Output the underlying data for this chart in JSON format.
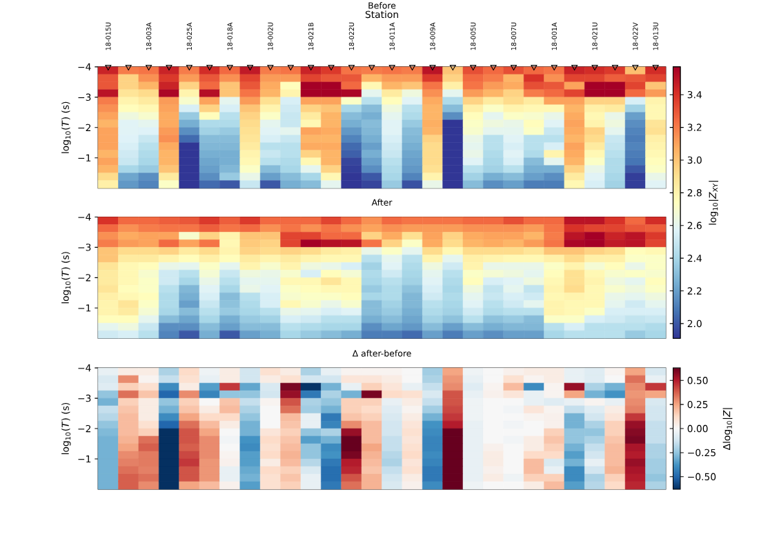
{
  "chart_data": [
    {
      "type": "heatmap",
      "title": "Before",
      "xlabel": "Station",
      "ylabel": "log$_{10}$(*T*) (s)",
      "clabel": "log$_{10}$|*Z*$_{XY}$|",
      "categories": [
        "18-015U",
        null,
        "18-003A",
        null,
        "18-025A",
        null,
        "18-018A",
        null,
        "18-002U",
        null,
        "18-021B",
        null,
        "18-022U",
        null,
        "18-011A",
        null,
        "18-009A",
        null,
        "18-005U",
        null,
        "18-007U",
        null,
        "18-001A",
        null,
        "18-021U",
        null,
        "18-022V",
        "18-013U"
      ],
      "ylim": [
        0,
        -4
      ],
      "yticks": [
        {
          "value": -4,
          "label": "−4"
        },
        {
          "value": -3,
          "label": "−3"
        },
        {
          "value": -2,
          "label": "−2"
        },
        {
          "value": -1,
          "label": "−1"
        }
      ],
      "clim": [
        1.91,
        3.57
      ],
      "cticks": [
        {
          "value": 2.8,
          "label": "2.8"
        },
        {
          "value": 3.0,
          "label": "3.0"
        },
        {
          "value": 3.2,
          "label": "3.2"
        },
        {
          "value": 3.4,
          "label": "3.4"
        }
      ],
      "cells": [
        [
          3.45,
          3.2,
          3.22,
          3.45,
          3.2,
          3.42,
          3.25,
          3.48,
          3.2,
          3.22,
          3.45,
          3.38,
          3.22,
          3.2,
          3.22,
          3.2,
          3.5,
          3.0,
          3.32,
          3.25,
          3.32,
          3.25,
          3.22,
          3.45,
          3.42,
          3.38,
          3.02,
          3.42
        ],
        [
          3.3,
          2.95,
          3.15,
          3.38,
          3.12,
          3.3,
          3.15,
          3.35,
          3.12,
          3.12,
          3.35,
          3.3,
          3.3,
          3.05,
          3.12,
          3.12,
          3.38,
          2.95,
          3.25,
          3.2,
          3.05,
          3.4,
          3.15,
          3.35,
          3.35,
          3.28,
          3.3,
          3.35
        ],
        [
          3.3,
          2.95,
          3.05,
          3.45,
          2.95,
          3.25,
          3.0,
          3.3,
          3.08,
          2.75,
          3.57,
          3.57,
          3.25,
          2.78,
          3.05,
          3.0,
          3.22,
          2.82,
          3.22,
          3.12,
          3.08,
          3.32,
          3.3,
          3.1,
          3.57,
          3.57,
          3.35,
          3.0
        ],
        [
          3.5,
          2.88,
          2.92,
          3.55,
          2.8,
          3.52,
          3.0,
          3.22,
          3.05,
          2.8,
          3.57,
          3.57,
          3.55,
          2.6,
          2.85,
          2.65,
          3.15,
          2.6,
          3.12,
          3.05,
          2.95,
          3.2,
          3.25,
          3.35,
          3.57,
          3.57,
          3.25,
          3.12
        ],
        [
          3.2,
          2.8,
          2.85,
          3.12,
          2.7,
          3.1,
          2.6,
          3.12,
          2.9,
          2.55,
          3.1,
          3.1,
          2.72,
          2.45,
          2.75,
          2.58,
          3.08,
          2.42,
          2.95,
          2.85,
          2.92,
          2.85,
          3.1,
          3.1,
          2.95,
          2.95,
          2.55,
          2.8
        ],
        [
          3.15,
          2.75,
          2.78,
          3.1,
          2.55,
          2.95,
          2.55,
          3.0,
          2.8,
          2.52,
          2.95,
          3.0,
          2.4,
          2.3,
          2.65,
          2.45,
          3.05,
          2.3,
          2.82,
          2.72,
          2.8,
          2.78,
          2.78,
          3.05,
          2.82,
          2.85,
          2.38,
          2.78
        ],
        [
          3.1,
          2.65,
          2.7,
          3.08,
          2.35,
          2.75,
          2.45,
          2.95,
          2.72,
          2.5,
          2.85,
          3.05,
          2.3,
          2.25,
          2.6,
          2.42,
          3.05,
          2.15,
          2.75,
          2.6,
          2.72,
          2.7,
          2.62,
          3.08,
          2.78,
          2.62,
          2.2,
          2.78
        ],
        [
          3.05,
          2.58,
          2.6,
          3.08,
          2.25,
          2.42,
          2.42,
          2.92,
          2.6,
          2.5,
          2.78,
          3.05,
          2.25,
          2.3,
          2.58,
          2.35,
          3.07,
          1.91,
          2.72,
          2.65,
          2.62,
          2.75,
          2.58,
          3.1,
          2.8,
          2.65,
          2.15,
          2.88
        ],
        [
          3.1,
          2.58,
          2.57,
          3.12,
          2.15,
          2.38,
          2.35,
          2.9,
          2.58,
          2.6,
          3.1,
          3.08,
          2.18,
          2.28,
          2.58,
          2.3,
          3.05,
          1.91,
          2.7,
          2.6,
          2.6,
          2.72,
          2.5,
          3.08,
          2.95,
          2.6,
          2.12,
          2.9
        ],
        [
          3.1,
          2.57,
          2.5,
          3.15,
          2.05,
          2.3,
          2.3,
          2.88,
          2.55,
          2.5,
          3.05,
          3.05,
          2.12,
          2.25,
          2.55,
          2.28,
          2.95,
          1.91,
          2.62,
          2.45,
          2.58,
          2.45,
          2.45,
          3.05,
          2.92,
          2.5,
          2.1,
          2.82
        ],
        [
          3.1,
          2.55,
          2.45,
          3.08,
          1.91,
          2.28,
          2.28,
          2.85,
          2.45,
          2.45,
          3.08,
          3.08,
          2.05,
          2.2,
          2.52,
          2.25,
          2.92,
          1.91,
          2.6,
          2.45,
          2.55,
          2.45,
          2.55,
          3.1,
          2.85,
          2.48,
          2.12,
          2.8
        ],
        [
          3.05,
          2.52,
          2.42,
          3.05,
          1.91,
          2.25,
          2.25,
          2.8,
          2.5,
          2.45,
          2.95,
          3.05,
          2.02,
          2.25,
          2.5,
          2.22,
          2.92,
          1.91,
          2.62,
          2.42,
          2.58,
          2.42,
          2.8,
          3.08,
          2.78,
          2.45,
          2.1,
          2.78
        ],
        [
          3.1,
          2.5,
          2.4,
          3.05,
          1.91,
          2.22,
          2.25,
          2.78,
          2.45,
          2.42,
          2.78,
          3.05,
          1.95,
          2.2,
          2.45,
          2.2,
          2.92,
          1.91,
          2.58,
          2.4,
          2.55,
          2.3,
          2.6,
          3.05,
          2.72,
          2.42,
          2.08,
          2.75
        ],
        [
          3.05,
          2.4,
          2.35,
          3.0,
          1.91,
          2.2,
          2.28,
          2.72,
          2.3,
          2.4,
          2.6,
          2.95,
          1.93,
          2.15,
          2.42,
          2.18,
          2.9,
          1.91,
          2.45,
          2.38,
          2.45,
          2.25,
          2.25,
          2.95,
          2.62,
          2.42,
          2.0,
          2.72
        ],
        [
          2.92,
          2.22,
          2.15,
          2.85,
          1.91,
          2.15,
          2.35,
          2.62,
          2.2,
          2.3,
          2.4,
          2.78,
          1.91,
          2.0,
          2.4,
          2.12,
          2.8,
          1.91,
          2.38,
          2.25,
          2.3,
          2.2,
          2.15,
          2.85,
          2.58,
          2.4,
          1.93,
          2.62
        ],
        [
          2.82,
          2.18,
          2.12,
          2.72,
          1.91,
          2.05,
          2.0,
          2.5,
          2.0,
          2.25,
          2.3,
          2.6,
          1.91,
          1.95,
          2.35,
          1.98,
          2.62,
          1.91,
          2.3,
          2.15,
          2.2,
          2.1,
          2.1,
          2.78,
          2.55,
          2.38,
          1.93,
          2.58
        ]
      ],
      "series": [
        {
          "type": "scatter",
          "marker": "triangle",
          "color": "#000000",
          "values": [
            -4,
            -4,
            -4,
            -4,
            -4,
            -4,
            -4,
            -4,
            -4,
            -4,
            -4,
            -4,
            -4,
            -4,
            -4,
            -4,
            -4,
            -4,
            -4,
            -4,
            -4,
            -4,
            -4,
            -4,
            -4,
            -4,
            -4,
            -4
          ]
        }
      ]
    },
    {
      "type": "heatmap",
      "title": "After",
      "ylabel": "log$_{10}$(*T*) (s)",
      "categories": [
        null,
        null,
        null,
        null,
        null,
        null,
        null,
        null,
        null,
        null,
        null,
        null,
        null,
        null,
        null,
        null,
        null,
        null,
        null,
        null,
        null,
        null,
        null,
        null,
        null,
        null,
        null,
        null
      ],
      "ylim": [
        0,
        -4
      ],
      "yticks": [
        {
          "value": -4,
          "label": "−4"
        },
        {
          "value": -3,
          "label": "−3"
        },
        {
          "value": -2,
          "label": "−2"
        },
        {
          "value": -1,
          "label": "−1"
        }
      ],
      "clim": [
        1.91,
        3.57
      ],
      "cticks": [
        {
          "value": 2.0,
          "label": "2.0"
        },
        {
          "value": 2.2,
          "label": "2.2"
        },
        {
          "value": 2.4,
          "label": "2.4"
        },
        {
          "value": 2.6,
          "label": "2.6"
        }
      ],
      "cells": [
        [
          3.4,
          3.25,
          3.25,
          3.28,
          3.3,
          3.38,
          3.28,
          3.38,
          3.25,
          3.25,
          3.25,
          3.35,
          3.25,
          3.15,
          3.25,
          3.22,
          3.22,
          3.22,
          3.25,
          3.25,
          3.32,
          3.25,
          3.25,
          3.5,
          3.5,
          3.4,
          3.25,
          3.42
        ],
        [
          3.25,
          3.15,
          3.2,
          3.22,
          3.22,
          3.28,
          3.22,
          3.25,
          3.15,
          3.22,
          3.15,
          3.22,
          3.15,
          3.1,
          3.15,
          3.12,
          3.12,
          3.12,
          3.15,
          3.15,
          3.15,
          3.12,
          3.22,
          3.4,
          3.35,
          3.35,
          3.3,
          3.28
        ],
        [
          3.15,
          3.08,
          3.1,
          3.1,
          2.7,
          2.95,
          2.8,
          3.0,
          3.0,
          3.35,
          3.35,
          3.25,
          3.25,
          2.95,
          3.08,
          2.9,
          3.1,
          2.95,
          3.08,
          3.1,
          3.1,
          3.05,
          3.2,
          3.5,
          3.57,
          3.45,
          3.5,
          3.38
        ],
        [
          3.2,
          3.12,
          3.1,
          3.25,
          3.1,
          3.22,
          2.78,
          2.98,
          2.95,
          3.35,
          3.57,
          3.52,
          3.5,
          3.22,
          2.95,
          2.72,
          3.08,
          2.92,
          3.05,
          3.08,
          3.05,
          3.12,
          3.22,
          3.55,
          3.57,
          3.48,
          3.5,
          3.35
        ],
        [
          3.0,
          2.92,
          2.92,
          2.95,
          2.85,
          2.92,
          2.8,
          2.95,
          2.92,
          2.95,
          2.92,
          2.85,
          2.82,
          2.62,
          2.72,
          2.6,
          2.92,
          2.78,
          2.92,
          2.92,
          2.92,
          2.88,
          3.0,
          3.0,
          2.95,
          2.92,
          2.75,
          2.78
        ],
        [
          3.0,
          2.85,
          2.85,
          2.8,
          2.75,
          2.82,
          2.75,
          2.85,
          2.8,
          2.85,
          2.8,
          2.78,
          2.78,
          2.45,
          2.6,
          2.45,
          2.8,
          2.6,
          2.82,
          2.8,
          2.78,
          2.78,
          2.82,
          2.92,
          2.82,
          2.82,
          2.72,
          2.72
        ],
        [
          2.88,
          2.78,
          2.75,
          2.62,
          2.6,
          2.72,
          2.6,
          2.8,
          2.7,
          2.8,
          2.65,
          2.62,
          2.55,
          2.38,
          2.58,
          2.42,
          2.65,
          2.52,
          2.8,
          2.62,
          2.62,
          2.62,
          2.72,
          2.8,
          2.68,
          2.75,
          2.62,
          2.72
        ],
        [
          2.85,
          2.78,
          2.7,
          2.52,
          2.45,
          2.68,
          2.5,
          2.65,
          2.62,
          2.7,
          2.55,
          2.75,
          2.68,
          2.42,
          2.52,
          2.4,
          2.6,
          2.45,
          2.72,
          2.68,
          2.65,
          2.6,
          2.75,
          2.9,
          2.78,
          2.7,
          2.72,
          2.7
        ],
        [
          2.85,
          2.78,
          2.72,
          2.52,
          2.4,
          2.62,
          2.45,
          2.6,
          2.6,
          2.78,
          2.78,
          2.88,
          2.78,
          2.4,
          2.45,
          2.38,
          2.58,
          2.42,
          2.75,
          2.55,
          2.58,
          2.65,
          2.78,
          2.9,
          2.8,
          2.65,
          2.6,
          2.75
        ],
        [
          2.88,
          2.75,
          2.72,
          2.45,
          2.28,
          2.58,
          2.4,
          2.62,
          2.58,
          2.72,
          2.75,
          2.78,
          2.78,
          2.35,
          2.42,
          2.32,
          2.55,
          2.4,
          2.65,
          2.48,
          2.6,
          2.48,
          2.8,
          2.92,
          2.78,
          2.7,
          2.65,
          2.72
        ],
        [
          2.82,
          2.78,
          2.75,
          2.42,
          2.25,
          2.55,
          2.3,
          2.45,
          2.55,
          2.7,
          2.72,
          2.72,
          2.75,
          2.4,
          2.42,
          2.28,
          2.52,
          2.42,
          2.6,
          2.5,
          2.55,
          2.52,
          2.78,
          2.8,
          2.78,
          2.62,
          2.6,
          2.65
        ],
        [
          2.8,
          2.88,
          2.72,
          2.42,
          2.2,
          2.5,
          2.32,
          2.42,
          2.55,
          2.78,
          2.7,
          2.62,
          2.7,
          2.3,
          2.38,
          2.28,
          2.45,
          2.4,
          2.58,
          2.45,
          2.52,
          2.6,
          2.8,
          2.78,
          2.78,
          2.6,
          2.52,
          2.6
        ],
        [
          2.8,
          2.85,
          2.68,
          2.4,
          2.3,
          2.45,
          2.35,
          2.4,
          2.45,
          2.62,
          2.6,
          2.55,
          2.58,
          2.3,
          2.35,
          2.25,
          2.42,
          2.38,
          2.52,
          2.42,
          2.45,
          2.45,
          2.8,
          2.78,
          2.72,
          2.55,
          2.55,
          2.55
        ],
        [
          2.75,
          2.75,
          2.6,
          2.3,
          2.22,
          2.4,
          2.25,
          2.35,
          2.38,
          2.55,
          2.52,
          2.45,
          2.45,
          2.25,
          2.3,
          2.22,
          2.38,
          2.32,
          2.45,
          2.32,
          2.35,
          2.3,
          2.72,
          2.72,
          2.55,
          2.52,
          2.48,
          2.5
        ],
        [
          2.6,
          2.65,
          2.5,
          2.15,
          2.15,
          2.3,
          2.2,
          2.3,
          2.3,
          2.45,
          2.42,
          2.4,
          2.4,
          2.15,
          2.22,
          2.18,
          2.3,
          2.2,
          2.3,
          2.25,
          2.28,
          2.28,
          2.45,
          2.55,
          2.45,
          2.45,
          2.45,
          2.42
        ],
        [
          2.52,
          2.55,
          2.45,
          2.12,
          2.0,
          2.25,
          2.0,
          2.2,
          2.25,
          2.4,
          2.35,
          2.3,
          2.25,
          2.1,
          2.1,
          2.05,
          2.2,
          2.1,
          2.2,
          2.15,
          2.2,
          2.2,
          2.4,
          2.45,
          2.45,
          2.45,
          2.35,
          2.4
        ]
      ]
    },
    {
      "type": "heatmap",
      "title": "Δ after-before",
      "ylabel": "log$_{10}$(*T*) (s)",
      "clabel": "Δlog$_{10}$|*Z*|",
      "categories": [
        null,
        null,
        null,
        null,
        null,
        null,
        null,
        null,
        null,
        null,
        null,
        null,
        null,
        null,
        null,
        null,
        null,
        null,
        null,
        null,
        null,
        null,
        null,
        null,
        null,
        null,
        null,
        null
      ],
      "ylim": [
        0,
        -4
      ],
      "yticks": [
        {
          "value": -4,
          "label": "−4"
        },
        {
          "value": -3,
          "label": "−3"
        },
        {
          "value": -2,
          "label": "−2"
        },
        {
          "value": -1,
          "label": "−1"
        }
      ],
      "clim": [
        -0.63,
        0.63
      ],
      "cticks": [
        {
          "value": -0.5,
          "label": "−0.50"
        },
        {
          "value": -0.25,
          "label": "−0.25"
        },
        {
          "value": 0,
          "label": "0.00"
        },
        {
          "value": 0.25,
          "label": "0.25"
        },
        {
          "value": 0.5,
          "label": "0.50"
        }
      ],
      "cells": [
        [
          -0.05,
          0.05,
          0.05,
          -0.2,
          0.12,
          -0.03,
          0.05,
          -0.12,
          0.1,
          0.05,
          -0.2,
          -0.05,
          0.02,
          0.02,
          0.02,
          0.0,
          -0.22,
          0.25,
          -0.03,
          0.0,
          0.03,
          0.05,
          0.05,
          -0.05,
          -0.08,
          0.02,
          0.25,
          -0.1
        ],
        [
          -0.1,
          0.3,
          0.02,
          -0.15,
          0.1,
          -0.05,
          0.05,
          -0.12,
          0.05,
          0.1,
          -0.12,
          -0.12,
          0.08,
          0.08,
          0.05,
          0.0,
          -0.2,
          0.28,
          -0.05,
          0.0,
          0.1,
          0.02,
          0.05,
          -0.05,
          -0.08,
          0.0,
          0.35,
          -0.05
        ],
        [
          -0.08,
          0.15,
          0.1,
          -0.4,
          0.05,
          -0.35,
          0.45,
          -0.33,
          -0.1,
          0.6,
          -0.62,
          -0.3,
          -0.05,
          0.15,
          0.08,
          -0.05,
          -0.15,
          0.3,
          -0.08,
          0.02,
          0.2,
          -0.4,
          0.02,
          0.55,
          -0.2,
          -0.3,
          0.3,
          0.45
        ],
        [
          -0.25,
          0.35,
          0.18,
          -0.5,
          0.3,
          -0.42,
          -0.25,
          -0.25,
          -0.12,
          0.55,
          -0.45,
          -0.2,
          -0.3,
          0.6,
          0.12,
          0.1,
          -0.1,
          0.4,
          -0.05,
          0.03,
          0.08,
          -0.05,
          0.02,
          0.25,
          -0.3,
          -0.38,
          0.28,
          0.25
        ],
        [
          -0.3,
          0.15,
          0.05,
          -0.25,
          0.15,
          0.0,
          0.18,
          -0.15,
          0.02,
          0.4,
          -0.2,
          -0.25,
          0.15,
          0.15,
          -0.05,
          0.05,
          -0.15,
          0.4,
          -0.03,
          0.0,
          0.0,
          -0.05,
          -0.08,
          -0.05,
          0.02,
          -0.05,
          0.3,
          -0.1
        ],
        [
          -0.15,
          0.18,
          0.05,
          -0.3,
          0.18,
          0.05,
          0.2,
          -0.2,
          0.0,
          0.35,
          -0.22,
          -0.3,
          0.15,
          0.12,
          -0.08,
          0.02,
          -0.22,
          0.42,
          -0.03,
          0.0,
          -0.02,
          0.08,
          0.02,
          -0.15,
          -0.08,
          0.05,
          0.32,
          -0.12
        ],
        [
          -0.18,
          0.2,
          0.05,
          -0.4,
          0.25,
          0.12,
          0.12,
          -0.25,
          0.0,
          0.2,
          -0.05,
          -0.45,
          0.18,
          0.15,
          -0.1,
          0.05,
          -0.3,
          0.45,
          -0.03,
          0.0,
          0.0,
          0.02,
          0.03,
          -0.3,
          -0.12,
          0.08,
          0.45,
          -0.12
        ],
        [
          -0.25,
          0.2,
          0.1,
          -0.5,
          0.35,
          0.2,
          0.05,
          -0.3,
          0.0,
          0.18,
          -0.05,
          -0.42,
          0.3,
          0.2,
          -0.12,
          0.08,
          -0.38,
          0.5,
          -0.05,
          0.0,
          -0.02,
          0.0,
          0.03,
          -0.3,
          -0.2,
          0.15,
          0.55,
          -0.15
        ],
        [
          -0.28,
          0.2,
          0.15,
          -0.63,
          0.4,
          0.25,
          0.0,
          -0.3,
          0.08,
          0.15,
          -0.25,
          -0.2,
          0.55,
          0.2,
          -0.12,
          0.1,
          -0.4,
          0.63,
          -0.05,
          0.0,
          0.0,
          0.0,
          0.15,
          -0.25,
          -0.25,
          0.15,
          0.58,
          -0.15
        ],
        [
          -0.3,
          0.22,
          0.35,
          -0.63,
          0.4,
          0.3,
          -0.02,
          -0.38,
          0.12,
          0.18,
          -0.35,
          -0.3,
          0.63,
          0.2,
          -0.15,
          0.08,
          -0.42,
          0.63,
          -0.05,
          0.0,
          -0.02,
          0.05,
          0.18,
          -0.25,
          -0.2,
          0.18,
          0.6,
          -0.15
        ],
        [
          -0.3,
          0.25,
          0.38,
          -0.63,
          0.38,
          0.3,
          0.0,
          -0.4,
          0.1,
          0.2,
          -0.25,
          -0.4,
          0.63,
          0.25,
          -0.15,
          0.1,
          -0.42,
          0.63,
          -0.05,
          0.03,
          0.0,
          0.05,
          0.15,
          -0.3,
          -0.15,
          0.2,
          0.52,
          -0.2
        ],
        [
          -0.3,
          0.3,
          0.33,
          -0.63,
          0.42,
          0.3,
          0.02,
          -0.35,
          0.12,
          0.22,
          -0.25,
          -0.38,
          0.6,
          0.22,
          -0.18,
          0.12,
          -0.4,
          0.63,
          -0.05,
          0.05,
          0.0,
          0.12,
          0.12,
          -0.35,
          -0.12,
          0.2,
          0.5,
          -0.2
        ],
        [
          -0.3,
          0.32,
          0.33,
          -0.63,
          0.45,
          0.28,
          0.03,
          -0.35,
          0.05,
          0.2,
          -0.18,
          -0.45,
          0.5,
          0.2,
          -0.2,
          0.08,
          -0.42,
          0.63,
          -0.05,
          0.05,
          0.0,
          0.2,
          -0.1,
          -0.3,
          -0.05,
          0.2,
          0.55,
          -0.22
        ],
        [
          -0.3,
          0.35,
          0.32,
          -0.63,
          0.4,
          0.28,
          -0.05,
          -0.32,
          0.12,
          0.15,
          -0.1,
          -0.48,
          0.48,
          0.18,
          -0.15,
          0.1,
          -0.45,
          0.63,
          -0.05,
          0.03,
          0.0,
          0.2,
          -0.05,
          -0.4,
          -0.12,
          0.22,
          0.52,
          -0.22
        ],
        [
          -0.3,
          0.38,
          0.35,
          -0.63,
          0.4,
          0.28,
          -0.05,
          -0.3,
          0.1,
          0.18,
          -0.05,
          -0.48,
          0.4,
          0.22,
          -0.12,
          0.05,
          -0.45,
          0.63,
          -0.05,
          0.05,
          -0.03,
          0.15,
          0.15,
          -0.4,
          -0.2,
          0.15,
          0.5,
          -0.25
        ],
        [
          -0.3,
          0.38,
          0.3,
          -0.63,
          0.25,
          0.2,
          0.03,
          -0.35,
          0.1,
          0.15,
          -0.05,
          -0.45,
          0.35,
          0.22,
          -0.1,
          0.03,
          -0.4,
          0.63,
          -0.03,
          0.0,
          0.0,
          0.05,
          0.2,
          -0.35,
          -0.18,
          0.12,
          0.48,
          -0.2
        ]
      ]
    }
  ]
}
